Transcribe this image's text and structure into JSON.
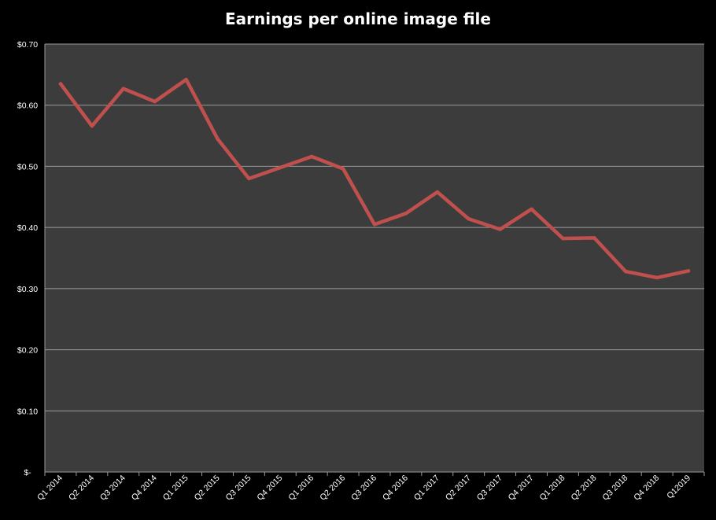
{
  "chart_data": {
    "type": "line",
    "title": "Earnings per online image file",
    "xlabel": "",
    "ylabel": "",
    "categories": [
      "Q1 2014",
      "Q2 2014",
      "Q3 2014",
      "Q4 2014",
      "Q1 2015",
      "Q2 2015",
      "Q3 2015",
      "Q4 2015",
      "Q1 2016",
      "Q2 2016",
      "Q3 2016",
      "Q4 2016",
      "Q1 2017",
      "Q2 2017",
      "Q3 2017",
      "Q4 2017",
      "Q1 2018",
      "Q2 2018",
      "Q3 2018",
      "Q4 2018",
      "Q12019"
    ],
    "series": [
      {
        "values": [
          0.635,
          0.566,
          0.627,
          0.606,
          0.642,
          0.545,
          0.48,
          0.498,
          0.516,
          0.496,
          0.405,
          0.423,
          0.458,
          0.414,
          0.397,
          0.43,
          0.382,
          0.383,
          0.328,
          0.318,
          0.329
        ],
        "color": "#c0504d"
      }
    ],
    "ylim": [
      0,
      0.7
    ],
    "yticks": [
      {
        "value": 0,
        "label": "$-"
      },
      {
        "value": 0.1,
        "label": "$0.10"
      },
      {
        "value": 0.2,
        "label": "$0.20"
      },
      {
        "value": 0.3,
        "label": "$0.30"
      },
      {
        "value": 0.4,
        "label": "$0.40"
      },
      {
        "value": 0.5,
        "label": "$0.50"
      },
      {
        "value": 0.6,
        "label": "$0.60"
      },
      {
        "value": 0.7,
        "label": "$0.70"
      }
    ],
    "grid": true,
    "legend": "none",
    "colors": {
      "background": "#000000",
      "plot_area": "#3c3c3c",
      "gridline": "#9a9a9a",
      "text": "#ffffff"
    }
  }
}
